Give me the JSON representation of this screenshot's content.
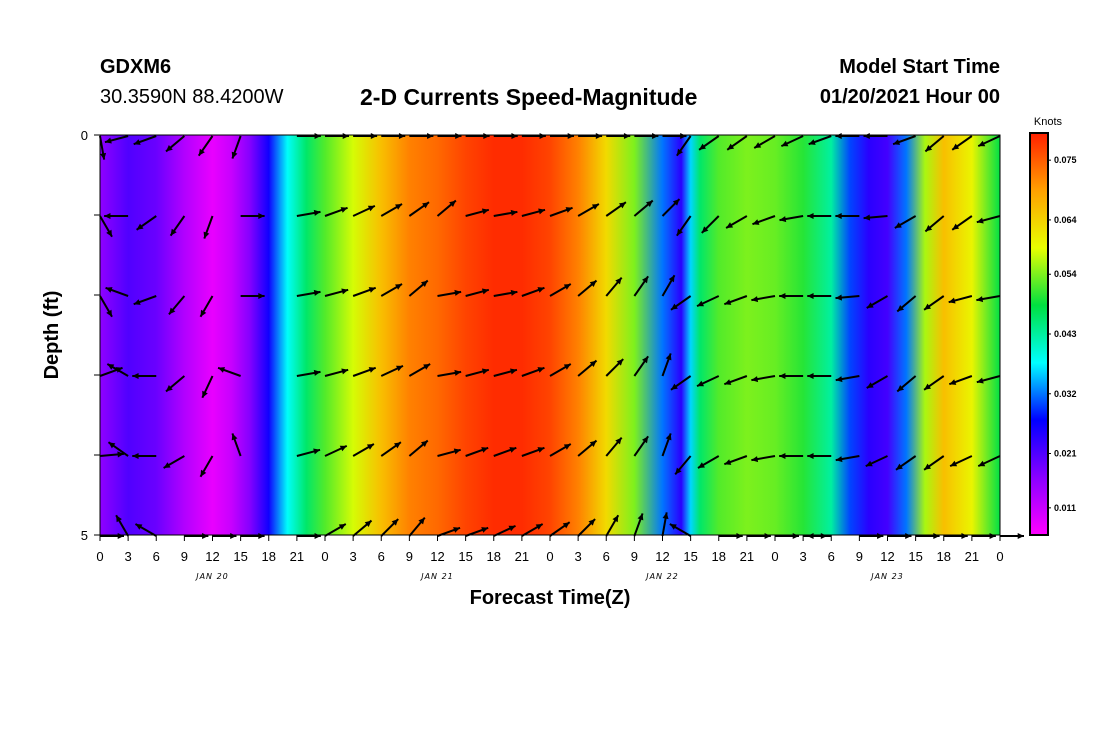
{
  "header": {
    "station": "GDXM6",
    "coords": "30.3590N 88.4200W",
    "model_start_label": "Model Start Time",
    "model_start_value": "01/20/2021 Hour 00"
  },
  "colors": {
    "scale_stops": [
      "#ff00ff",
      "#8a00ff",
      "#0000ff",
      "#00ffff",
      "#00e040",
      "#e8ff00",
      "#ffa000",
      "#ff2000"
    ],
    "arrow": "#000000",
    "axis": "#000000"
  },
  "chart_data": {
    "type": "heatmap",
    "title": "2-D Currents Speed-Magnitude",
    "xlabel": "Forecast Time(Z)",
    "ylabel": "Depth (ft)",
    "colorbar_label": "Knots",
    "colorbar_ticks": [
      "0.011",
      "0.021",
      "0.032",
      "0.043",
      "0.054",
      "0.064",
      "0.075"
    ],
    "value_range": [
      0.006,
      0.08
    ],
    "ylim": [
      0,
      5
    ],
    "y_tick_labels": [
      "0",
      "5"
    ],
    "x_tick_labels": [
      "0",
      "3",
      "6",
      "9",
      "12",
      "15",
      "18",
      "21",
      "0",
      "3",
      "6",
      "9",
      "12",
      "15",
      "18",
      "21",
      "0",
      "3",
      "6",
      "9",
      "12",
      "15",
      "18",
      "21",
      "0",
      "3",
      "6",
      "9",
      "12",
      "15",
      "18",
      "21",
      "0"
    ],
    "day_labels": [
      "JAN 20",
      "JAN 21",
      "JAN 22",
      "JAN 23"
    ],
    "speed_profile": {
      "hours": [
        0,
        3,
        6,
        9,
        12,
        14,
        16,
        18,
        20,
        22,
        24,
        27,
        30,
        33,
        36,
        39,
        42,
        45,
        48,
        51,
        54,
        57,
        60,
        62,
        63,
        64,
        66,
        69,
        72,
        75,
        78,
        80,
        82,
        84,
        86,
        88,
        90,
        93,
        96
      ],
      "speed_knots": [
        0.016,
        0.021,
        0.019,
        0.013,
        0.008,
        0.011,
        0.017,
        0.026,
        0.038,
        0.046,
        0.052,
        0.058,
        0.066,
        0.072,
        0.074,
        0.077,
        0.079,
        0.079,
        0.077,
        0.072,
        0.063,
        0.054,
        0.032,
        0.024,
        0.036,
        0.046,
        0.052,
        0.054,
        0.053,
        0.05,
        0.043,
        0.03,
        0.024,
        0.022,
        0.032,
        0.056,
        0.066,
        0.06,
        0.048
      ]
    },
    "depth_rows": [
      0,
      1,
      2,
      3,
      4,
      5
    ],
    "arrow_times_hours": [
      0,
      3,
      6,
      9,
      12,
      15,
      21,
      24,
      27,
      30,
      33,
      36,
      39,
      42,
      45,
      48,
      51,
      54,
      57,
      60,
      63,
      66,
      69,
      72,
      75,
      78,
      81,
      84,
      87,
      90,
      93,
      96
    ],
    "arrow_directions_deg": [
      [
        -80,
        195,
        200,
        220,
        235,
        250,
        0,
        0,
        0,
        0,
        0,
        0,
        0,
        0,
        0,
        0,
        0,
        0,
        0,
        0,
        235,
        215,
        215,
        210,
        205,
        200,
        180,
        180,
        200,
        220,
        215,
        205
      ],
      [
        -60,
        180,
        215,
        235,
        250,
        0,
        10,
        20,
        25,
        30,
        35,
        40,
        15,
        10,
        15,
        20,
        30,
        35,
        40,
        45,
        235,
        225,
        210,
        200,
        190,
        180,
        180,
        185,
        210,
        220,
        215,
        195
      ],
      [
        -60,
        160,
        200,
        230,
        240,
        0,
        10,
        15,
        20,
        30,
        40,
        10,
        15,
        10,
        20,
        30,
        40,
        50,
        55,
        60,
        215,
        205,
        200,
        190,
        180,
        180,
        185,
        210,
        220,
        215,
        195,
        190
      ],
      [
        20,
        150,
        180,
        220,
        245,
        160,
        10,
        15,
        20,
        25,
        30,
        10,
        15,
        15,
        20,
        30,
        40,
        45,
        55,
        70,
        215,
        205,
        200,
        190,
        180,
        180,
        190,
        210,
        220,
        215,
        200,
        195
      ],
      [
        5,
        145,
        180,
        210,
        240,
        110,
        15,
        25,
        30,
        35,
        40,
        15,
        20,
        20,
        20,
        30,
        40,
        50,
        55,
        70,
        230,
        210,
        200,
        190,
        180,
        180,
        190,
        205,
        215,
        215,
        205,
        205
      ],
      [
        0,
        120,
        150,
        0,
        0,
        0,
        0,
        30,
        40,
        45,
        50,
        20,
        20,
        25,
        30,
        35,
        45,
        60,
        70,
        80,
        150,
        0,
        0,
        0,
        0,
        180,
        0,
        0,
        0,
        0,
        0,
        0
      ]
    ]
  }
}
